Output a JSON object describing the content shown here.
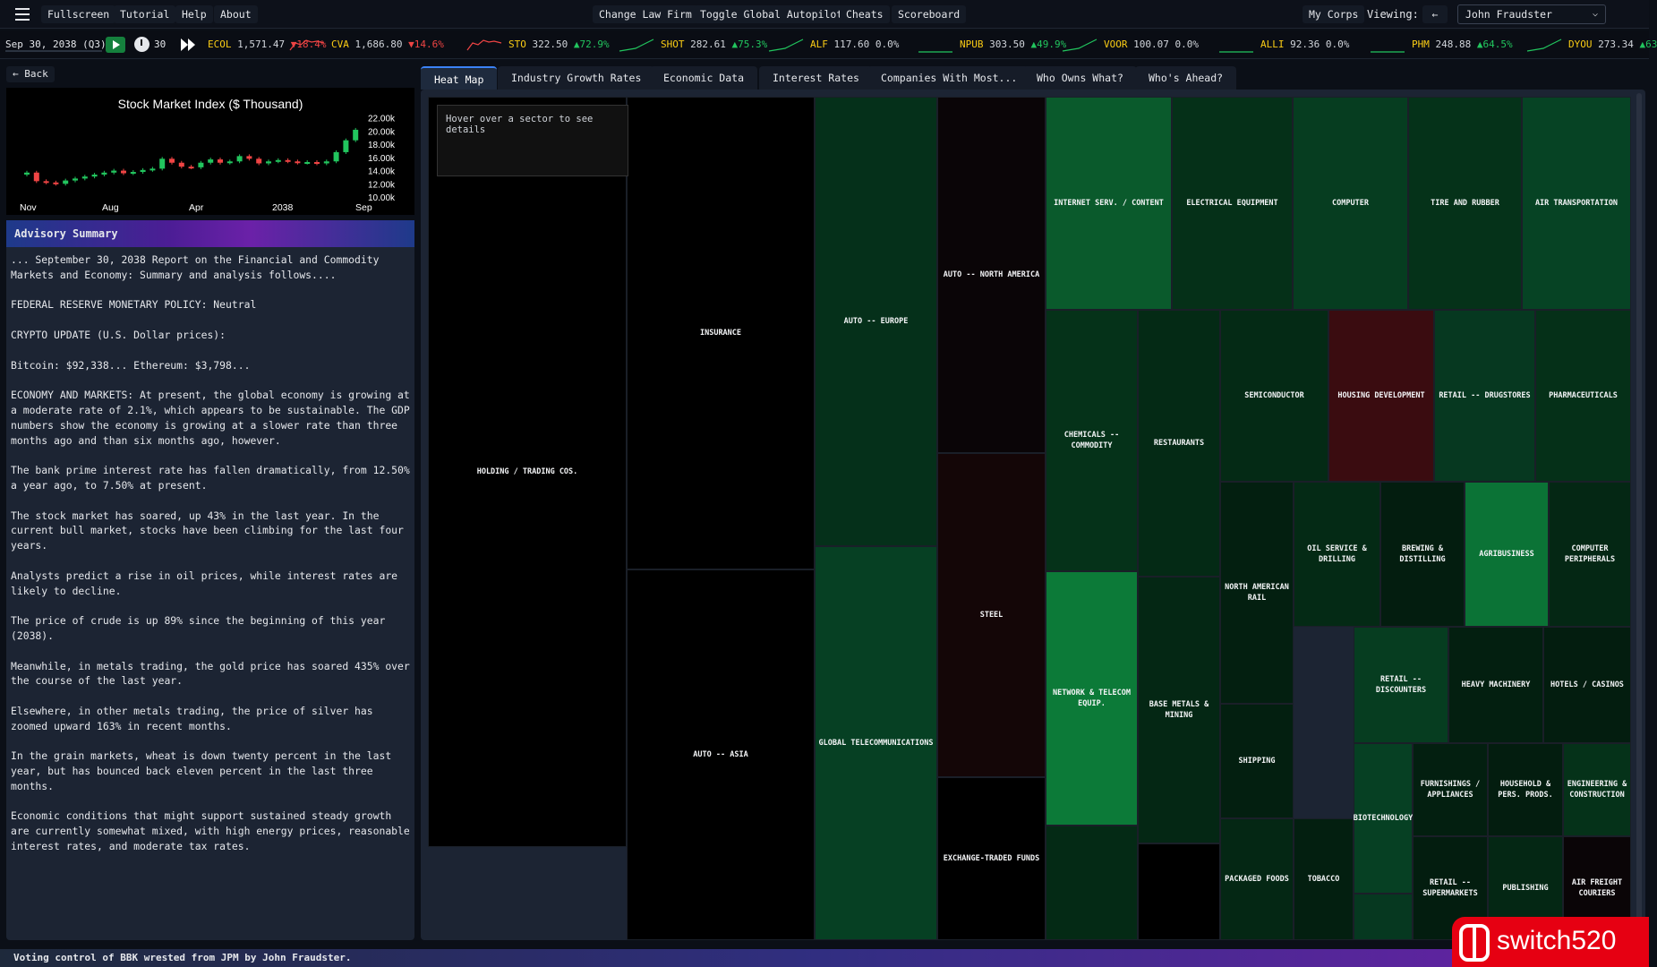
{
  "topbar": {
    "fullscreen": "Fullscreen",
    "tutorial": "Tutorial",
    "help": "Help",
    "about": "About",
    "change_law_firm": "Change Law Firm",
    "toggle_autopilot": "Toggle Global Autopilot",
    "cheats": "Cheats",
    "scoreboard": "Scoreboard",
    "my_corps": "My Corps",
    "viewing_label": "Viewing:",
    "back_arrow": "←",
    "viewing_value": "John Fraudster"
  },
  "ticker": {
    "date": "Sep 30, 2038 (Q3)",
    "speed": "30",
    "items": [
      {
        "sym": "ECOL",
        "price": "1,571.47",
        "change": "▼18.4%",
        "dir": "dn"
      },
      {
        "sym": "CVA",
        "price": "1,686.80",
        "change": "▼14.6%",
        "dir": "dn"
      },
      {
        "sym": "STO",
        "price": "322.50",
        "change": "▲72.9%",
        "dir": "up"
      },
      {
        "sym": "SHOT",
        "price": "282.61",
        "change": "▲75.3%",
        "dir": "up"
      },
      {
        "sym": "ALF",
        "price": "117.60",
        "change": "0.0%",
        "dir": "flat"
      },
      {
        "sym": "NPUB",
        "price": "303.50",
        "change": "▲49.9%",
        "dir": "up"
      },
      {
        "sym": "VOOR",
        "price": "100.07",
        "change": "0.0%",
        "dir": "flat"
      },
      {
        "sym": "ALLI",
        "price": "92.36",
        "change": "0.0%",
        "dir": "flat"
      },
      {
        "sym": "PHM",
        "price": "248.88",
        "change": "▲64.5%",
        "dir": "up"
      },
      {
        "sym": "DYOU",
        "price": "273.34",
        "change": "▲63",
        "dir": "up"
      }
    ]
  },
  "left": {
    "back": "← Back",
    "advisory_title": "Advisory Summary",
    "advisory_paragraphs": [
      "... September 30, 2038 Report on the Financial and Commodity Markets and Economy: Summary and analysis follows....",
      "FEDERAL RESERVE MONETARY POLICY: Neutral",
      "CRYPTO UPDATE (U.S. Dollar prices):",
      "Bitcoin: $92,338... Ethereum: $3,798...",
      "ECONOMY AND MARKETS: At present, the global economy is growing at a moderate rate of 2.1%, which appears to be sustainable. The GDP numbers show the economy is growing at a slower rate than three months ago and than six months ago, however.",
      "The bank prime interest rate has fallen dramatically, from 12.50% a year ago, to 7.50% at present.",
      "The stock market has soared, up 43% in the last year. In the current bull market, stocks have been climbing for the last four years.",
      "Analysts predict a rise in oil prices, while interest rates are likely to decline.",
      "The price of crude is up 89% since the beginning of this year (2038).",
      "Meanwhile, in metals trading, the gold price has soared 435% over the course of the last year.",
      "Elsewhere, in other metals trading, the price of silver has zoomed upward 163% in recent months.",
      "In the grain markets, wheat is down twenty percent in the last year, but has bounced back eleven percent in the last three months.",
      "Economic conditions that might support sustained steady growth are currently somewhat mixed, with high energy prices, reasonable interest rates, and moderate tax rates."
    ]
  },
  "chart_data": {
    "type": "candlestick",
    "title": "Stock Market Index ($ Thousand)",
    "x_tick_labels": [
      "Nov",
      "Aug",
      "Apr",
      "2038",
      "Sep"
    ],
    "y_tick_labels": [
      "22.00k",
      "20.00k",
      "18.00k",
      "16.00k",
      "14.00k",
      "12.00k",
      "10.00k"
    ],
    "ylim": [
      10000,
      22500
    ],
    "candles": [
      {
        "o": 13400,
        "c": 13700,
        "up": true
      },
      {
        "o": 13700,
        "c": 12400,
        "up": false
      },
      {
        "o": 12400,
        "c": 12200,
        "up": false
      },
      {
        "o": 12200,
        "c": 12000,
        "up": false
      },
      {
        "o": 12000,
        "c": 12500,
        "up": true
      },
      {
        "o": 12500,
        "c": 12800,
        "up": true
      },
      {
        "o": 12800,
        "c": 13100,
        "up": true
      },
      {
        "o": 13100,
        "c": 13400,
        "up": true
      },
      {
        "o": 13400,
        "c": 13700,
        "up": true
      },
      {
        "o": 13700,
        "c": 14000,
        "up": true
      },
      {
        "o": 14000,
        "c": 13600,
        "up": false
      },
      {
        "o": 13600,
        "c": 13800,
        "up": true
      },
      {
        "o": 13800,
        "c": 14100,
        "up": true
      },
      {
        "o": 14100,
        "c": 14300,
        "up": true
      },
      {
        "o": 14300,
        "c": 15800,
        "up": true
      },
      {
        "o": 15800,
        "c": 15200,
        "up": false
      },
      {
        "o": 15200,
        "c": 14600,
        "up": false
      },
      {
        "o": 14600,
        "c": 14500,
        "up": false
      },
      {
        "o": 14500,
        "c": 15200,
        "up": true
      },
      {
        "o": 15200,
        "c": 15700,
        "up": true
      },
      {
        "o": 15700,
        "c": 15200,
        "up": false
      },
      {
        "o": 15200,
        "c": 15400,
        "up": true
      },
      {
        "o": 15400,
        "c": 16200,
        "up": true
      },
      {
        "o": 16200,
        "c": 15800,
        "up": false
      },
      {
        "o": 15800,
        "c": 15100,
        "up": false
      },
      {
        "o": 15100,
        "c": 15400,
        "up": true
      },
      {
        "o": 15400,
        "c": 15600,
        "up": true
      },
      {
        "o": 15600,
        "c": 15400,
        "up": false
      },
      {
        "o": 15400,
        "c": 15200,
        "up": false
      },
      {
        "o": 15200,
        "c": 15300,
        "up": true
      },
      {
        "o": 15300,
        "c": 15100,
        "up": false
      },
      {
        "o": 15100,
        "c": 15400,
        "up": true
      },
      {
        "o": 15400,
        "c": 16800,
        "up": true
      },
      {
        "o": 16800,
        "c": 18600,
        "up": true
      },
      {
        "o": 18600,
        "c": 20200,
        "up": true
      }
    ]
  },
  "tabs": [
    "Heat Map",
    "Industry Growth Rates",
    "Economic Data",
    "Interest Rates",
    "Companies With Most...",
    "Who Owns What?",
    "Who's Ahead?"
  ],
  "heatmap": {
    "hover_hint": "Hover over a sector to see details",
    "cells": [
      {
        "name": "HOLDING / TRADING COS.",
        "color": "#000000"
      },
      {
        "name": "",
        "color": "#000000"
      },
      {
        "name": "INSURANCE",
        "color": "#000000"
      },
      {
        "name": "AUTO -- ASIA",
        "color": "#000000"
      },
      {
        "name": "AUTO -- EUROPE",
        "color": "#05301a"
      },
      {
        "name": "GLOBAL TELECOMMUNICATIONS",
        "color": "#064023"
      },
      {
        "name": "AUTO -- NORTH AMERICA",
        "color": "#0a0507"
      },
      {
        "name": "STEEL",
        "color": "#140607"
      },
      {
        "name": "EXCHANGE-TRADED FUNDS",
        "color": "#000000"
      },
      {
        "name": "INTERNET SERV. / CONTENT",
        "color": "#0a5a2c"
      },
      {
        "name": "ELECTRICAL EQUIPMENT",
        "color": "#053018"
      },
      {
        "name": "COMPUTER",
        "color": "#063d20"
      },
      {
        "name": "TIRE AND RUBBER",
        "color": "#053219"
      },
      {
        "name": "AIR TRANSPORTATION",
        "color": "#064324"
      },
      {
        "name": "CHEMICALS -- COMMODITY",
        "color": "#053219"
      },
      {
        "name": "RESTAURANTS",
        "color": "#042a15"
      },
      {
        "name": "SEMICONDUCTOR",
        "color": "#042a15"
      },
      {
        "name": "HOUSING DEVELOPMENT",
        "color": "#3a0c10"
      },
      {
        "name": "RETAIL -- DRUGSTORES",
        "color": "#063820"
      },
      {
        "name": "PHARMACEUTICALS",
        "color": "#053018"
      },
      {
        "name": "NORTH AMERICAN RAIL",
        "color": "#031f10"
      },
      {
        "name": "OIL SERVICE & DRILLING",
        "color": "#042a15"
      },
      {
        "name": "BREWING & DISTILLING",
        "color": "#031d0f"
      },
      {
        "name": "AGRIBUSINESS",
        "color": "#0b7336"
      },
      {
        "name": "COMPUTER PERIPHERALS",
        "color": "#042714"
      },
      {
        "name": "NETWORK & TELECOM EQUIP.",
        "color": "#0c7a38"
      },
      {
        "name": "",
        "color": "#042a15"
      },
      {
        "name": "BASE METALS & MINING",
        "color": "#042714"
      },
      {
        "name": "",
        "color": "#000000"
      },
      {
        "name": "SHIPPING",
        "color": "#031f10"
      },
      {
        "name": "RETAIL -- DISCOUNTERS",
        "color": "#063d20"
      },
      {
        "name": "HEAVY MACHINERY",
        "color": "#031f10"
      },
      {
        "name": "HOTELS / CASINOS",
        "color": "#031d0f"
      },
      {
        "name": "PACKAGED FOODS",
        "color": "#042714"
      },
      {
        "name": "TOBACCO",
        "color": "#031f10"
      },
      {
        "name": "BIOTECHNOLOGY",
        "color": "#064023"
      },
      {
        "name": "",
        "color": "#063820"
      },
      {
        "name": "FURNISHINGS / APPLIANCES",
        "color": "#031f10"
      },
      {
        "name": "HOUSEHOLD & PERS. PRODS.",
        "color": "#031d0f"
      },
      {
        "name": "ENGINEERING & CONSTRUCTION",
        "color": "#053219"
      },
      {
        "name": "RETAIL -- SUPERMARKETS",
        "color": "#031d0f"
      },
      {
        "name": "PUBLISHING",
        "color": "#042714"
      },
      {
        "name": "AIR FREIGHT COURIERS",
        "color": "#0a0507"
      }
    ]
  },
  "status": {
    "message": "Voting control of BBK wrested from JPM by John Fraudster."
  },
  "watermark": {
    "text": "switch520"
  }
}
